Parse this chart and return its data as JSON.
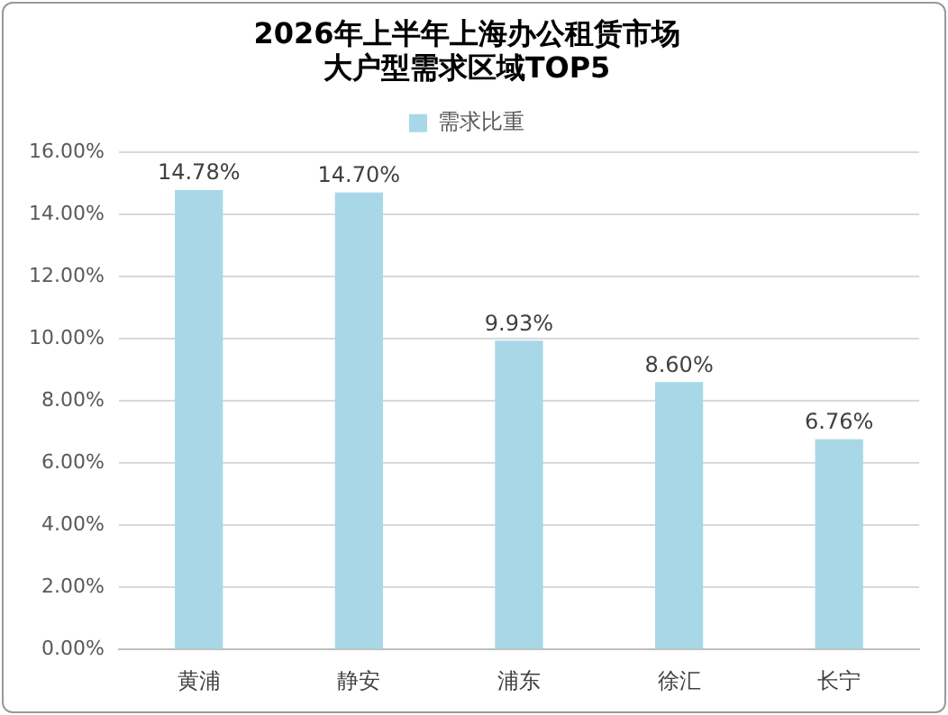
{
  "chart_data": {
    "type": "bar",
    "title": "2026年上半年上海办公租赁市场大户型需求区域TOP5",
    "categories": [
      "黄浦",
      "静安",
      "浦东",
      "徐汇",
      "长宁"
    ],
    "series": [
      {
        "name": "需求比重",
        "color": "#a8d8e8",
        "values": [
          14.78,
          14.7,
          9.93,
          8.6,
          6.76
        ],
        "value_labels": [
          "14.78%",
          "14.70%",
          "9.93%",
          "8.60%",
          "6.76%"
        ]
      }
    ],
    "ylim": [
      0,
      16
    ],
    "yticks": [
      {
        "value": 0,
        "label": "0.00%"
      },
      {
        "value": 2,
        "label": "2.00%"
      },
      {
        "value": 4,
        "label": "4.00%"
      },
      {
        "value": 6,
        "label": "6.00%"
      },
      {
        "value": 8,
        "label": "8.00%"
      },
      {
        "value": 10,
        "label": "10.00%"
      },
      {
        "value": 12,
        "label": "12.00%"
      },
      {
        "value": 14,
        "label": "14.00%"
      },
      {
        "value": 16,
        "label": "16.00%"
      }
    ],
    "grid": "y",
    "legend": "top"
  }
}
